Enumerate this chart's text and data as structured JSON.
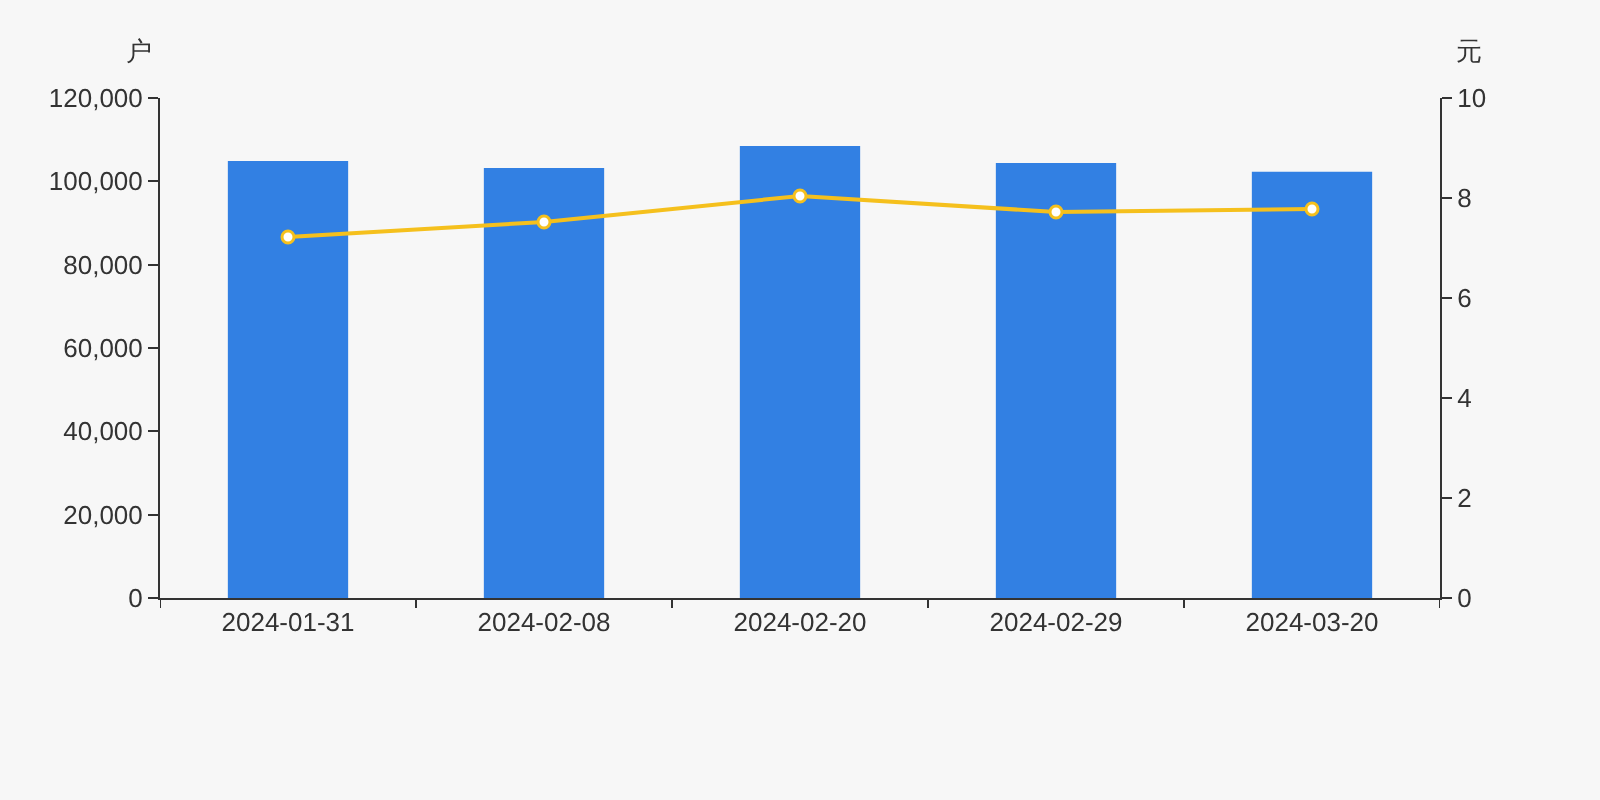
{
  "chart_data": {
    "type": "bar",
    "ylabel": "户",
    "y2label": "元",
    "categories": [
      "2024-01-31",
      "2024-02-08",
      "2024-02-20",
      "2024-02-29",
      "2024-03-20"
    ],
    "series": [
      {
        "color": "#3280e3",
        "values": [
          104900,
          103200,
          108500,
          104400,
          102300
        ]
      },
      {
        "type": "line",
        "axis": "y2",
        "color": "#f5c01d",
        "marker": "circle",
        "values": [
          7.22,
          7.52,
          8.04,
          7.72,
          7.78
        ]
      }
    ],
    "ylim": [
      0,
      120000
    ],
    "yticks": [
      {
        "value": 0,
        "label": "0"
      },
      {
        "value": 20000,
        "label": "20,000"
      },
      {
        "value": 40000,
        "label": "40,000"
      },
      {
        "value": 60000,
        "label": "60,000"
      },
      {
        "value": 80000,
        "label": "80,000"
      },
      {
        "value": 100000,
        "label": "100,000"
      },
      {
        "value": 120000,
        "label": "120,000"
      }
    ],
    "y2lim": [
      0,
      10
    ],
    "y2ticks": [
      0,
      2,
      4,
      6,
      8,
      10
    ]
  }
}
